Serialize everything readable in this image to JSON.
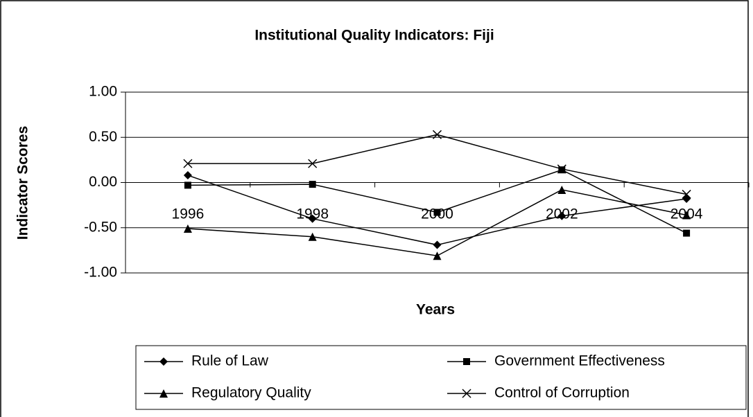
{
  "chart_data": {
    "type": "line",
    "title": "Institutional Quality Indicators: Fiji",
    "x_label": "Years",
    "y_label": "Indicator Scores",
    "categories": [
      "1996",
      "1998",
      "2000",
      "2002",
      "2004"
    ],
    "series": [
      {
        "name": "Rule of Law",
        "color": "#000000",
        "marker": "diamond",
        "values": [
          0.08,
          -0.4,
          -0.69,
          -0.37,
          -0.18
        ]
      },
      {
        "name": "Government Effectiveness",
        "color": "#000000",
        "marker": "square",
        "values": [
          -0.03,
          -0.02,
          -0.33,
          0.14,
          -0.56
        ]
      },
      {
        "name": "Regulatory Quality",
        "color": "#000000",
        "marker": "triangle",
        "values": [
          -0.51,
          -0.6,
          -0.81,
          -0.08,
          -0.36
        ]
      },
      {
        "name": "Control of Corruption",
        "color": "#000000",
        "marker": "x",
        "values": [
          0.21,
          0.21,
          0.53,
          0.15,
          -0.13
        ]
      }
    ],
    "ylim": [
      -1,
      1
    ],
    "yticks": [
      {
        "value": 1,
        "label": "1.00"
      },
      {
        "value": 0.5,
        "label": "0.50"
      },
      {
        "value": 0,
        "label": "0.00"
      },
      {
        "value": -0.5,
        "label": "-0.50"
      },
      {
        "value": -1,
        "label": "-1.00"
      }
    ],
    "grid": true
  }
}
